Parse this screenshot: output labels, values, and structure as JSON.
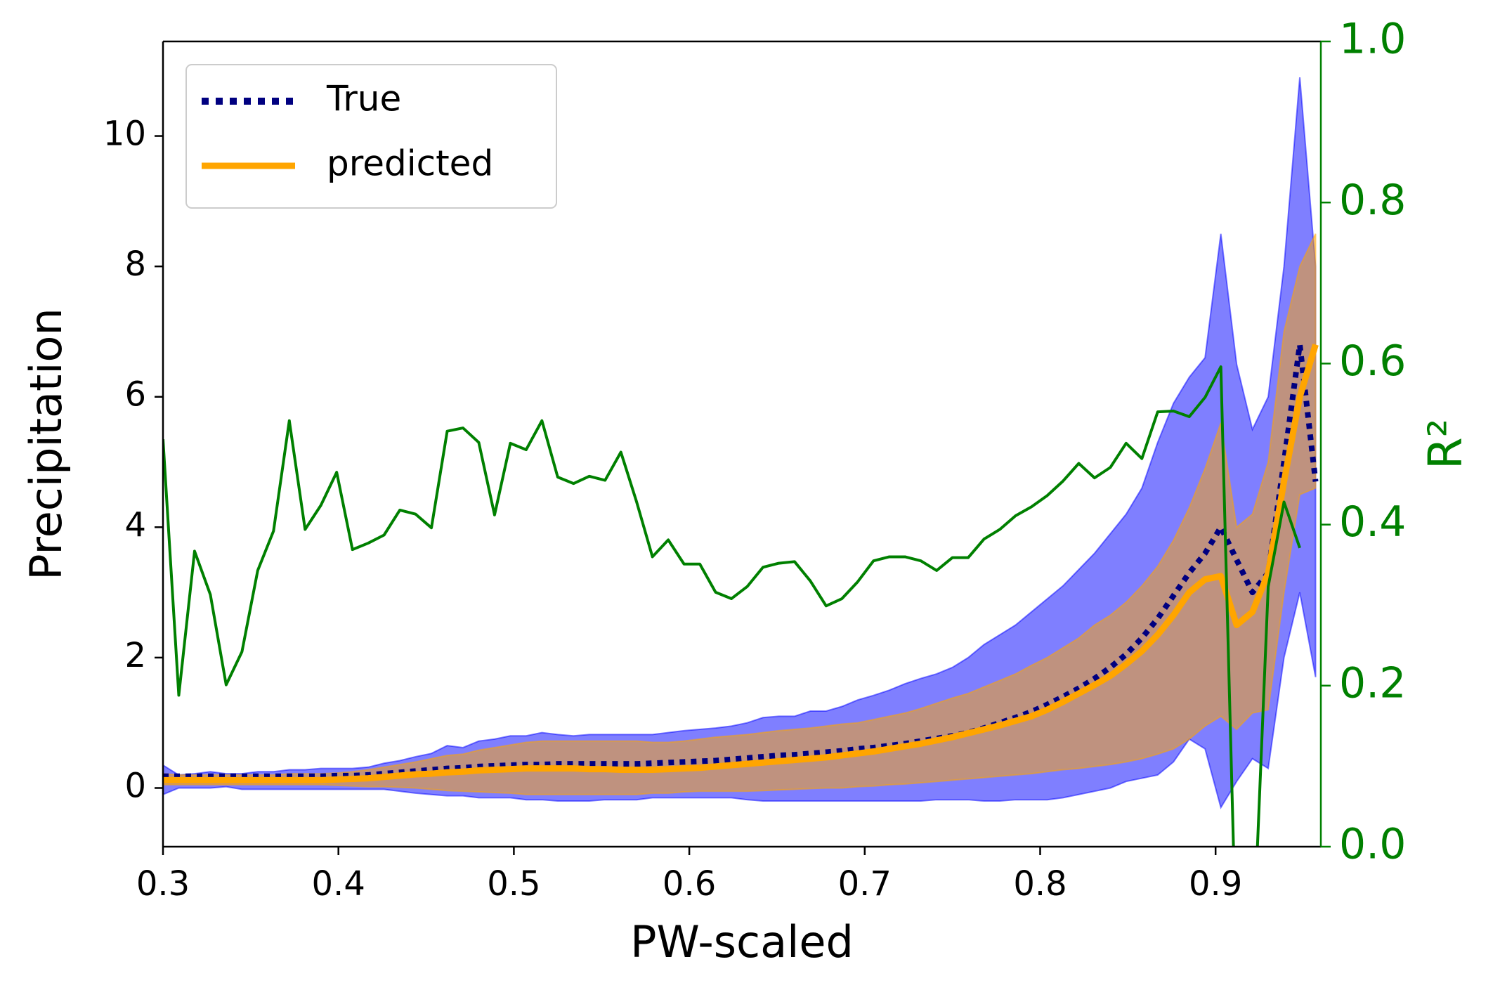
{
  "chart_data": {
    "type": "line",
    "x_label": "PW-scaled",
    "y_label": "Precipitation",
    "y2_label": "R²",
    "xlim": [
      0.3,
      0.96
    ],
    "ylim": [
      -0.9,
      11.45
    ],
    "y2lim": [
      0,
      1
    ],
    "xticks": [
      0.3,
      0.4,
      0.5,
      0.6,
      0.7,
      0.8,
      0.9
    ],
    "yticks": [
      0,
      2,
      4,
      6,
      8,
      10
    ],
    "y2ticks": [
      {
        "value": 0,
        "label": "0.0"
      },
      0.2,
      0.4,
      0.6,
      0.8,
      {
        "value": 1,
        "label": "1.0"
      }
    ],
    "legend": "upper left",
    "x": [
      0.3,
      0.309,
      0.318,
      0.327,
      0.336,
      0.345,
      0.354,
      0.363,
      0.372,
      0.381,
      0.39,
      0.399,
      0.408,
      0.417,
      0.426,
      0.435,
      0.444,
      0.453,
      0.462,
      0.471,
      0.48,
      0.489,
      0.498,
      0.507,
      0.516,
      0.525,
      0.534,
      0.543,
      0.552,
      0.561,
      0.57,
      0.579,
      0.588,
      0.597,
      0.606,
      0.615,
      0.624,
      0.633,
      0.642,
      0.651,
      0.66,
      0.669,
      0.678,
      0.687,
      0.696,
      0.705,
      0.714,
      0.723,
      0.732,
      0.741,
      0.75,
      0.759,
      0.768,
      0.777,
      0.786,
      0.795,
      0.804,
      0.813,
      0.822,
      0.831,
      0.84,
      0.849,
      0.858,
      0.867,
      0.876,
      0.885,
      0.894,
      0.903,
      0.912,
      0.921,
      0.93,
      0.939,
      0.948,
      0.957
    ],
    "bands": [
      {
        "color": "#0000ff",
        "opacity": 0.5,
        "upper": [
          0.35,
          0.2,
          0.22,
          0.25,
          0.22,
          0.22,
          0.25,
          0.25,
          0.28,
          0.28,
          0.3,
          0.3,
          0.3,
          0.32,
          0.38,
          0.42,
          0.48,
          0.53,
          0.65,
          0.62,
          0.72,
          0.75,
          0.8,
          0.8,
          0.85,
          0.82,
          0.8,
          0.82,
          0.82,
          0.82,
          0.82,
          0.82,
          0.85,
          0.88,
          0.9,
          0.92,
          0.95,
          1.0,
          1.08,
          1.1,
          1.1,
          1.18,
          1.18,
          1.25,
          1.35,
          1.42,
          1.5,
          1.6,
          1.68,
          1.75,
          1.85,
          2.0,
          2.2,
          2.35,
          2.5,
          2.7,
          2.9,
          3.1,
          3.35,
          3.6,
          3.9,
          4.2,
          4.6,
          5.3,
          5.9,
          6.3,
          6.6,
          8.5,
          6.5,
          5.5,
          6.0,
          8.0,
          10.9,
          8.0
        ],
        "lower": [
          -0.1,
          0.0,
          0.0,
          0.0,
          0.02,
          -0.02,
          -0.02,
          -0.02,
          -0.02,
          -0.02,
          -0.02,
          -0.02,
          -0.02,
          -0.02,
          -0.02,
          -0.05,
          -0.08,
          -0.1,
          -0.12,
          -0.12,
          -0.15,
          -0.15,
          -0.15,
          -0.18,
          -0.18,
          -0.2,
          -0.2,
          -0.2,
          -0.18,
          -0.18,
          -0.18,
          -0.15,
          -0.15,
          -0.15,
          -0.15,
          -0.15,
          -0.15,
          -0.18,
          -0.2,
          -0.2,
          -0.2,
          -0.2,
          -0.2,
          -0.2,
          -0.2,
          -0.2,
          -0.2,
          -0.2,
          -0.2,
          -0.18,
          -0.18,
          -0.18,
          -0.2,
          -0.2,
          -0.18,
          -0.18,
          -0.18,
          -0.15,
          -0.1,
          -0.05,
          0.0,
          0.1,
          0.15,
          0.2,
          0.4,
          0.75,
          0.6,
          -0.3,
          0.1,
          0.45,
          0.3,
          2.0,
          3.0,
          1.7
        ]
      },
      {
        "color": "#ffa500",
        "opacity": 0.5,
        "upper": [
          0.22,
          0.2,
          0.2,
          0.2,
          0.2,
          0.2,
          0.2,
          0.2,
          0.22,
          0.22,
          0.22,
          0.23,
          0.25,
          0.28,
          0.32,
          0.36,
          0.4,
          0.45,
          0.5,
          0.52,
          0.58,
          0.62,
          0.66,
          0.7,
          0.72,
          0.72,
          0.72,
          0.72,
          0.72,
          0.72,
          0.72,
          0.7,
          0.7,
          0.72,
          0.75,
          0.78,
          0.8,
          0.82,
          0.85,
          0.88,
          0.9,
          0.92,
          0.95,
          0.98,
          1.0,
          1.05,
          1.1,
          1.15,
          1.22,
          1.3,
          1.38,
          1.45,
          1.55,
          1.65,
          1.75,
          1.88,
          2.0,
          2.15,
          2.3,
          2.5,
          2.65,
          2.85,
          3.1,
          3.4,
          3.8,
          4.3,
          4.9,
          5.6,
          4.0,
          4.2,
          5.0,
          7.0,
          8.0,
          8.5
        ],
        "lower": [
          0.05,
          0.05,
          0.05,
          0.05,
          0.05,
          0.05,
          0.05,
          0.05,
          0.05,
          0.05,
          0.05,
          0.04,
          0.03,
          0.02,
          0.02,
          0.01,
          0.0,
          -0.02,
          -0.04,
          -0.05,
          -0.06,
          -0.07,
          -0.08,
          -0.1,
          -0.1,
          -0.1,
          -0.1,
          -0.1,
          -0.1,
          -0.1,
          -0.1,
          -0.08,
          -0.08,
          -0.06,
          -0.05,
          -0.05,
          -0.05,
          -0.05,
          -0.04,
          -0.03,
          -0.02,
          -0.01,
          0.0,
          0.0,
          0.02,
          0.03,
          0.05,
          0.06,
          0.08,
          0.1,
          0.12,
          0.14,
          0.16,
          0.18,
          0.2,
          0.22,
          0.25,
          0.28,
          0.3,
          0.33,
          0.36,
          0.4,
          0.45,
          0.52,
          0.6,
          0.75,
          0.95,
          1.1,
          0.9,
          1.15,
          1.2,
          3.0,
          4.5,
          4.6
        ]
      }
    ],
    "series": [
      {
        "name": "True",
        "color": "#000080",
        "style": "dotted",
        "values": [
          0.18,
          0.18,
          0.18,
          0.18,
          0.18,
          0.18,
          0.18,
          0.18,
          0.18,
          0.18,
          0.18,
          0.19,
          0.19,
          0.2,
          0.22,
          0.24,
          0.26,
          0.28,
          0.3,
          0.31,
          0.33,
          0.34,
          0.35,
          0.36,
          0.36,
          0.37,
          0.37,
          0.37,
          0.37,
          0.37,
          0.37,
          0.38,
          0.39,
          0.4,
          0.41,
          0.42,
          0.44,
          0.46,
          0.48,
          0.5,
          0.51,
          0.53,
          0.55,
          0.57,
          0.6,
          0.62,
          0.65,
          0.68,
          0.72,
          0.76,
          0.8,
          0.85,
          0.92,
          1.0,
          1.08,
          1.17,
          1.28,
          1.4,
          1.53,
          1.68,
          1.85,
          2.05,
          2.3,
          2.6,
          2.95,
          3.3,
          3.6,
          4.0,
          3.5,
          3.0,
          3.3,
          5.0,
          6.8,
          4.7
        ]
      },
      {
        "name": "predicted",
        "color": "#ffa500",
        "style": "solid",
        "values": [
          0.12,
          0.12,
          0.12,
          0.12,
          0.12,
          0.12,
          0.12,
          0.12,
          0.12,
          0.12,
          0.12,
          0.13,
          0.14,
          0.15,
          0.17,
          0.19,
          0.21,
          0.22,
          0.24,
          0.25,
          0.27,
          0.28,
          0.29,
          0.3,
          0.3,
          0.3,
          0.3,
          0.29,
          0.29,
          0.28,
          0.28,
          0.28,
          0.29,
          0.3,
          0.31,
          0.33,
          0.35,
          0.37,
          0.39,
          0.41,
          0.43,
          0.45,
          0.47,
          0.5,
          0.53,
          0.56,
          0.6,
          0.64,
          0.68,
          0.73,
          0.78,
          0.84,
          0.9,
          0.96,
          1.03,
          1.1,
          1.2,
          1.32,
          1.45,
          1.58,
          1.72,
          1.9,
          2.1,
          2.35,
          2.65,
          3.0,
          3.2,
          3.25,
          2.5,
          2.7,
          3.3,
          4.7,
          6.0,
          6.8
        ]
      },
      {
        "color": "#008000",
        "style": "thin",
        "axis": "y2",
        "values": [
          0.506,
          0.188,
          0.367,
          0.313,
          0.201,
          0.242,
          0.343,
          0.392,
          0.529,
          0.394,
          0.424,
          0.465,
          0.369,
          0.377,
          0.387,
          0.418,
          0.413,
          0.396,
          0.516,
          0.52,
          0.502,
          0.412,
          0.501,
          0.493,
          0.529,
          0.459,
          0.451,
          0.46,
          0.455,
          0.49,
          0.428,
          0.36,
          0.381,
          0.351,
          0.351,
          0.316,
          0.308,
          0.323,
          0.347,
          0.352,
          0.354,
          0.33,
          0.299,
          0.308,
          0.329,
          0.355,
          0.36,
          0.36,
          0.355,
          0.343,
          0.359,
          0.359,
          0.382,
          0.394,
          0.411,
          0.422,
          0.436,
          0.454,
          0.476,
          0.458,
          0.471,
          0.501,
          0.482,
          0.54,
          0.541,
          0.534,
          0.558,
          0.596,
          -0.15,
          -0.15,
          0.323,
          0.428,
          0.371,
          null
        ]
      }
    ]
  }
}
